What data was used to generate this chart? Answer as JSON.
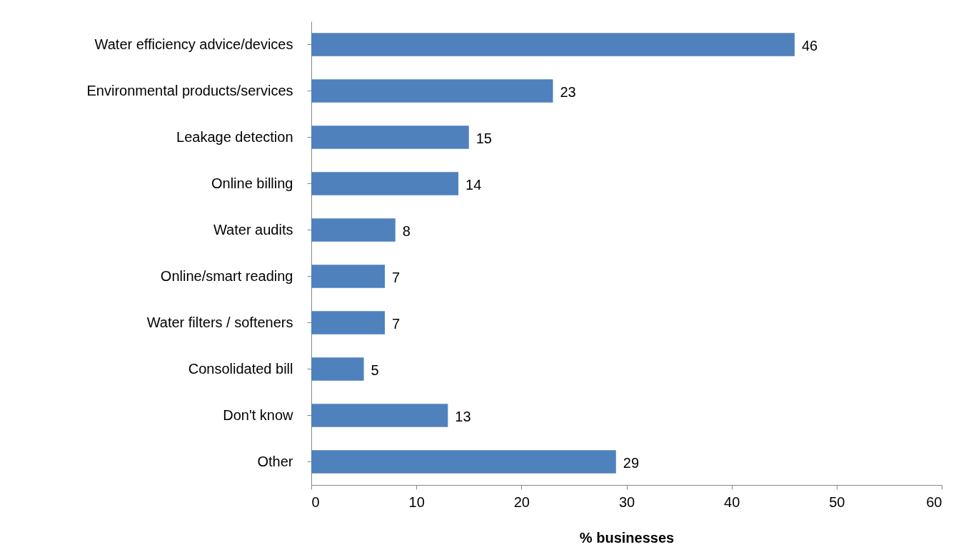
{
  "chart_data": {
    "type": "bar",
    "orientation": "horizontal",
    "xlabel": "% businesses",
    "categories": [
      "Water efficiency advice/devices",
      "Environmental products/services",
      "Leakage detection",
      "Online billing",
      "Water audits",
      "Online/smart reading",
      "Water filters / softeners",
      "Consolidated bill",
      "Don't know",
      "Other"
    ],
    "values": [
      46,
      23,
      15,
      14,
      8,
      7,
      7,
      5,
      13,
      29
    ],
    "color": "#4f81bd",
    "xlim": [
      0,
      60
    ],
    "xticks": [
      0,
      10,
      20,
      30,
      40,
      50,
      60
    ],
    "grid": false,
    "data_labels": true
  }
}
